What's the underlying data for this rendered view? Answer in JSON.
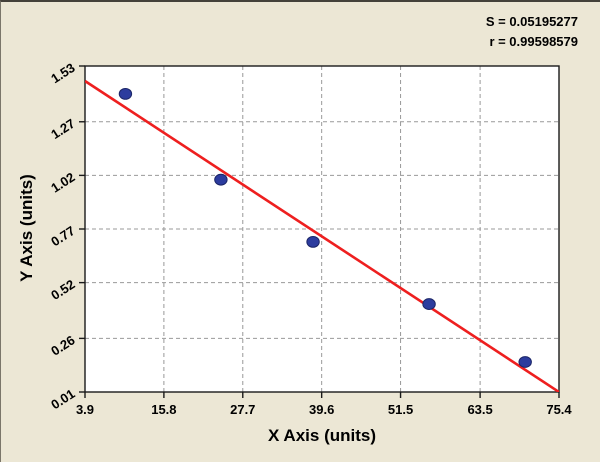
{
  "chart_data": {
    "type": "scatter",
    "title": "",
    "xlabel": "X Axis (units)",
    "ylabel": "Y Axis (units)",
    "x_ticks": [
      "3.9",
      "15.8",
      "27.7",
      "39.6",
      "51.5",
      "63.5",
      "75.4"
    ],
    "y_ticks": [
      "0.01",
      "0.26",
      "0.52",
      "0.77",
      "1.02",
      "1.27",
      "1.53"
    ],
    "xlim": [
      3.9,
      75.4
    ],
    "ylim": [
      0.01,
      1.53
    ],
    "grid": true,
    "legend_position": "none",
    "points": [
      {
        "x": 10.0,
        "y": 1.4
      },
      {
        "x": 24.4,
        "y": 1.0
      },
      {
        "x": 38.3,
        "y": 0.71
      },
      {
        "x": 55.8,
        "y": 0.42
      },
      {
        "x": 70.3,
        "y": 0.15
      }
    ],
    "fit_line": {
      "x1": 3.9,
      "y1": 1.46,
      "x2": 75.4,
      "y2": 0.01
    },
    "annotations": {
      "s": "S = 0.05195277",
      "r": "r = 0.99598579"
    },
    "colors": {
      "background": "#ece7d5",
      "plot_background": "#ffffff",
      "point_fill": "#2c3c9e",
      "point_edge": "#1b2566",
      "line": "#ee1f1f",
      "grid": "#999999",
      "frame": "#1a1a1a",
      "text": "#000000"
    }
  }
}
